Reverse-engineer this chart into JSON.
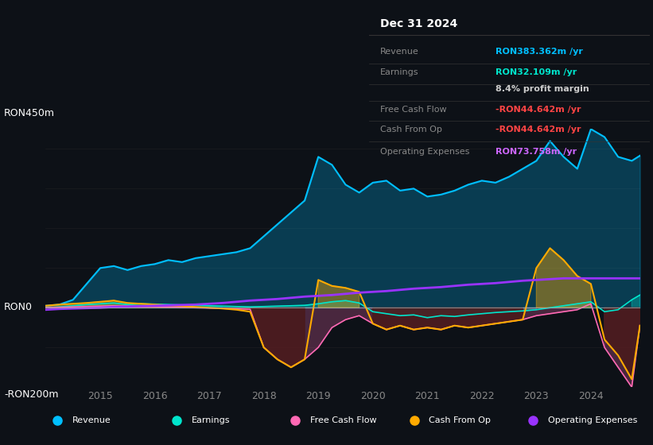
{
  "bg_color": "#0d1117",
  "plot_bg_color": "#0d1117",
  "title_box": {
    "date": "Dec 31 2024",
    "rows": [
      {
        "label": "Revenue",
        "value": "RON383.362m /yr",
        "value_color": "#00bfff"
      },
      {
        "label": "Earnings",
        "value": "RON32.109m /yr",
        "value_color": "#00e5cc"
      },
      {
        "label": "",
        "value": "8.4% profit margin",
        "value_color": "#cccccc"
      },
      {
        "label": "Free Cash Flow",
        "value": "-RON44.642m /yr",
        "value_color": "#ff4444"
      },
      {
        "label": "Cash From Op",
        "value": "-RON44.642m /yr",
        "value_color": "#ff4444"
      },
      {
        "label": "Operating Expenses",
        "value": "RON73.758m /yr",
        "value_color": "#cc66ff"
      }
    ]
  },
  "ylim": [
    -200,
    450
  ],
  "yticks": [
    0,
    450,
    -200
  ],
  "ytick_labels": [
    "RON0",
    "RON450m",
    "-RON200m"
  ],
  "years": [
    2014.0,
    2014.25,
    2014.5,
    2014.75,
    2015.0,
    2015.25,
    2015.5,
    2015.75,
    2016.0,
    2016.25,
    2016.5,
    2016.75,
    2017.0,
    2017.25,
    2017.5,
    2017.75,
    2018.0,
    2018.25,
    2018.5,
    2018.75,
    2019.0,
    2019.25,
    2019.5,
    2019.75,
    2020.0,
    2020.25,
    2020.5,
    2020.75,
    2021.0,
    2021.25,
    2021.5,
    2021.75,
    2022.0,
    2022.25,
    2022.5,
    2022.75,
    2023.0,
    2023.25,
    2023.5,
    2023.75,
    2024.0,
    2024.25,
    2024.5,
    2024.75,
    2024.9
  ],
  "revenue": [
    5,
    8,
    20,
    60,
    100,
    105,
    95,
    105,
    110,
    120,
    115,
    125,
    130,
    135,
    140,
    150,
    180,
    210,
    240,
    270,
    380,
    360,
    310,
    290,
    315,
    320,
    295,
    300,
    280,
    285,
    295,
    310,
    320,
    315,
    330,
    350,
    370,
    420,
    380,
    350,
    450,
    430,
    380,
    370,
    383
  ],
  "earnings": [
    0,
    2,
    5,
    8,
    10,
    12,
    8,
    10,
    9,
    8,
    7,
    6,
    5,
    4,
    3,
    2,
    3,
    4,
    5,
    6,
    10,
    15,
    18,
    12,
    -10,
    -15,
    -20,
    -18,
    -25,
    -20,
    -22,
    -18,
    -15,
    -12,
    -10,
    -8,
    -5,
    0,
    5,
    10,
    15,
    -10,
    -5,
    20,
    32
  ],
  "free_cash_flow": [
    0,
    1,
    2,
    3,
    4,
    5,
    4,
    3,
    3,
    2,
    1,
    0,
    -1,
    -2,
    -3,
    -4,
    -100,
    -130,
    -150,
    -130,
    -100,
    -50,
    -30,
    -20,
    -40,
    -55,
    -45,
    -55,
    -50,
    -55,
    -45,
    -50,
    -45,
    -40,
    -35,
    -30,
    -20,
    -15,
    -10,
    -5,
    10,
    -100,
    -150,
    -200,
    -45
  ],
  "cash_from_op": [
    5,
    8,
    10,
    12,
    15,
    18,
    12,
    10,
    8,
    6,
    4,
    2,
    0,
    -2,
    -5,
    -10,
    -100,
    -130,
    -150,
    -130,
    70,
    55,
    50,
    40,
    -40,
    -55,
    -45,
    -55,
    -50,
    -55,
    -45,
    -50,
    -45,
    -40,
    -35,
    -30,
    100,
    150,
    120,
    80,
    60,
    -80,
    -120,
    -180,
    -45
  ],
  "op_expenses": [
    -5,
    -3,
    -2,
    -1,
    0,
    2,
    3,
    4,
    5,
    6,
    7,
    8,
    10,
    12,
    15,
    18,
    20,
    22,
    25,
    28,
    30,
    32,
    35,
    38,
    40,
    42,
    45,
    48,
    50,
    52,
    55,
    58,
    60,
    62,
    65,
    68,
    70,
    72,
    74,
    74,
    74,
    74,
    74,
    74,
    74
  ],
  "xtick_positions": [
    2015,
    2016,
    2017,
    2018,
    2019,
    2020,
    2021,
    2022,
    2023,
    2024
  ],
  "xtick_labels": [
    "2015",
    "2016",
    "2017",
    "2018",
    "2019",
    "2020",
    "2021",
    "2022",
    "2023",
    "2024"
  ],
  "revenue_color": "#00bfff",
  "earnings_color": "#00e5cc",
  "fcf_color": "#ff69b4",
  "cashop_color": "#ffaa00",
  "opex_color": "#9933ff",
  "grid_color": "#2a2a2a",
  "zero_line_color": "#aaaaaa",
  "legend_items": [
    {
      "label": "Revenue",
      "color": "#00bfff"
    },
    {
      "label": "Earnings",
      "color": "#00e5cc"
    },
    {
      "label": "Free Cash Flow",
      "color": "#ff69b4"
    },
    {
      "label": "Cash From Op",
      "color": "#ffaa00"
    },
    {
      "label": "Operating Expenses",
      "color": "#9933ff"
    }
  ]
}
